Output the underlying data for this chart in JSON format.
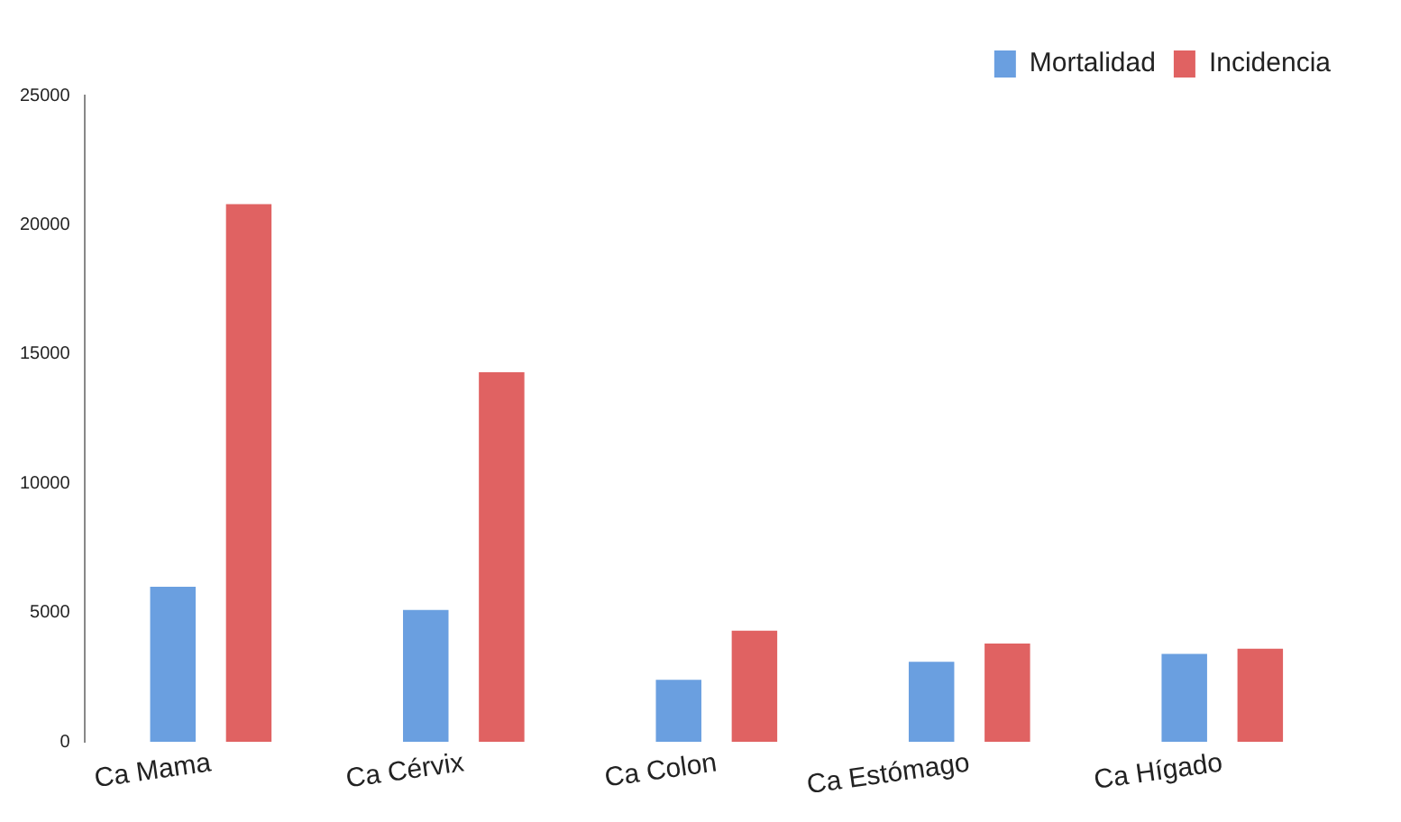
{
  "chart_data": {
    "type": "bar",
    "categories": [
      "Ca Mama",
      "Ca Cérvix",
      "Ca Colon",
      "Ca Estómago",
      "Ca Hígado"
    ],
    "series": [
      {
        "name": "Mortalidad",
        "color": "#6a9fe0",
        "values": [
          6000,
          5100,
          2400,
          3100,
          3400
        ]
      },
      {
        "name": "Incidencia",
        "color": "#e06262",
        "values": [
          20800,
          14300,
          4300,
          3800,
          3600
        ]
      }
    ],
    "ylim": [
      0,
      25000
    ],
    "yticks": [
      0,
      5000,
      10000,
      15000,
      20000,
      25000
    ],
    "grid": false,
    "legend": "top right"
  }
}
